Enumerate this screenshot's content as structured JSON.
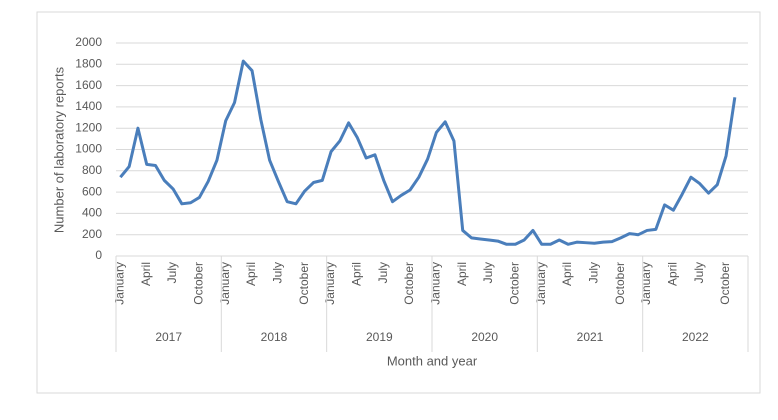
{
  "chart_data": {
    "type": "line",
    "x_label": "Month and year",
    "y_label": "Number of laboratory reports",
    "categories": [
      "January",
      null,
      null,
      "April",
      null,
      null,
      "July",
      null,
      null,
      "October",
      null,
      null,
      "January",
      null,
      null,
      "April",
      null,
      null,
      "July",
      null,
      null,
      "October",
      null,
      null,
      "January",
      null,
      null,
      "April",
      null,
      null,
      "July",
      null,
      null,
      "October",
      null,
      null,
      "January",
      null,
      null,
      "April",
      null,
      null,
      "July",
      null,
      null,
      "October",
      null,
      null,
      "January",
      null,
      null,
      "April",
      null,
      null,
      "July",
      null,
      null,
      "October",
      null,
      null,
      "January",
      null,
      null,
      "April",
      null,
      null,
      "July",
      null,
      null,
      "October",
      null,
      null
    ],
    "years": [
      "2017",
      "2018",
      "2019",
      "2020",
      "2021",
      "2022"
    ],
    "series": [
      {
        "color": "#4a7ebb",
        "values": [
          740,
          840,
          1200,
          860,
          850,
          710,
          630,
          490,
          500,
          550,
          700,
          900,
          1270,
          1440,
          1830,
          1740,
          1280,
          900,
          700,
          510,
          490,
          610,
          690,
          710,
          980,
          1080,
          1250,
          1110,
          920,
          950,
          710,
          510,
          570,
          620,
          740,
          910,
          1160,
          1260,
          1080,
          240,
          170,
          160,
          150,
          140,
          110,
          110,
          150,
          240,
          110,
          110,
          150,
          110,
          130,
          125,
          120,
          130,
          135,
          170,
          210,
          200,
          240,
          250,
          480,
          430,
          580,
          740,
          680,
          590,
          670,
          940,
          1490,
          null
        ]
      }
    ],
    "ylim": [
      0,
      2000
    ],
    "yticks": [
      0,
      200,
      400,
      600,
      800,
      1000,
      1200,
      1400,
      1600,
      1800,
      2000
    ],
    "grid": true
  }
}
